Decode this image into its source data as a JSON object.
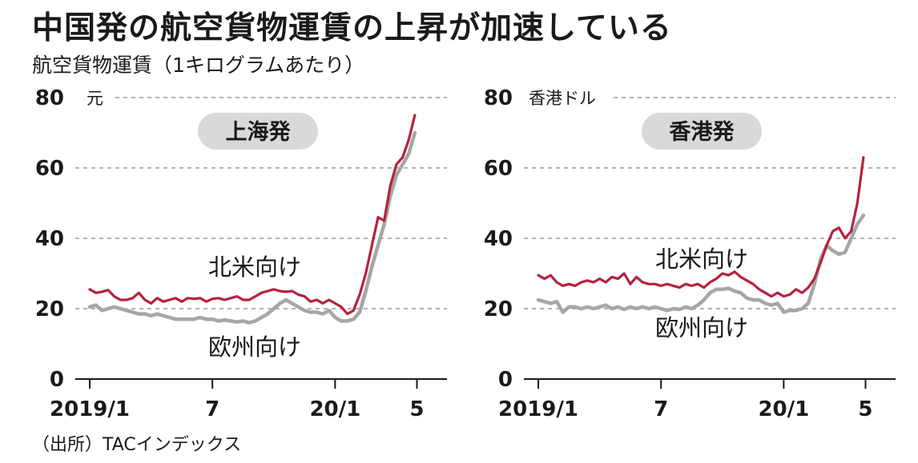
{
  "title": "中国発の航空貨物運賃の上昇が加速している",
  "subtitle": "航空貨物運賃（1キログラムあたり）",
  "source": "（出所）TACインデックス",
  "colors": {
    "north_america": "#b5223f",
    "europe": "#a6a6a6",
    "badge": "#d9d9d9"
  },
  "chart_data": [
    {
      "type": "line",
      "title": "上海発",
      "unit": "元",
      "ylim": [
        0,
        80
      ],
      "yticks": [
        "0",
        "20",
        "40",
        "60",
        "80"
      ],
      "xlim": [
        0,
        17
      ],
      "xticks": [
        {
          "x": 0,
          "label": "2019/1"
        },
        {
          "x": 6,
          "label": "7"
        },
        {
          "x": 12,
          "label": "20/1"
        },
        {
          "x": 16,
          "label": "5"
        }
      ],
      "series": [
        {
          "name": "北米向け",
          "color": "#b5223f",
          "x": [
            0,
            0.3,
            0.6,
            0.9,
            1.2,
            1.5,
            1.8,
            2.1,
            2.4,
            2.7,
            3.0,
            3.3,
            3.6,
            3.9,
            4.2,
            4.5,
            4.8,
            5.1,
            5.4,
            5.7,
            6.0,
            6.3,
            6.6,
            6.9,
            7.2,
            7.5,
            7.8,
            8.1,
            8.4,
            8.7,
            9.0,
            9.3,
            9.6,
            9.9,
            10.2,
            10.5,
            10.8,
            11.1,
            11.4,
            11.7,
            12.0,
            12.3,
            12.6,
            12.9,
            13.2,
            13.5,
            13.8,
            14.1,
            14.4,
            14.7,
            15.0,
            15.3,
            15.6,
            15.9
          ],
          "values": [
            25.5,
            24.5,
            24.8,
            25.3,
            23.5,
            22.5,
            22.5,
            23.0,
            24.5,
            22.5,
            21.5,
            23.0,
            22.0,
            22.5,
            23.0,
            22.0,
            23.0,
            22.8,
            23.0,
            22.0,
            22.8,
            23.0,
            22.5,
            23.0,
            23.5,
            22.5,
            22.5,
            23.5,
            24.5,
            25.0,
            25.5,
            25.0,
            24.8,
            25.0,
            24.0,
            23.5,
            22.0,
            22.5,
            21.5,
            22.5,
            21.5,
            20.5,
            18.5,
            19.5,
            24.0,
            30.0,
            38.0,
            46.0,
            45.0,
            55.0,
            61.0,
            63.0,
            68.0,
            75.0
          ]
        },
        {
          "name": "欧州向け",
          "color": "#a6a6a6",
          "x": [
            0,
            0.3,
            0.6,
            0.9,
            1.2,
            1.5,
            1.8,
            2.1,
            2.4,
            2.7,
            3.0,
            3.3,
            3.6,
            3.9,
            4.2,
            4.5,
            4.8,
            5.1,
            5.4,
            5.7,
            6.0,
            6.3,
            6.6,
            6.9,
            7.2,
            7.5,
            7.8,
            8.1,
            8.4,
            8.7,
            9.0,
            9.3,
            9.6,
            9.9,
            10.2,
            10.5,
            10.8,
            11.1,
            11.4,
            11.7,
            12.0,
            12.3,
            12.6,
            12.9,
            13.2,
            13.5,
            13.8,
            14.1,
            14.4,
            14.7,
            15.0,
            15.3,
            15.6,
            15.9
          ],
          "values": [
            20.5,
            21.0,
            19.5,
            20.0,
            20.5,
            20.0,
            19.5,
            19.0,
            18.5,
            18.5,
            18.0,
            18.5,
            18.0,
            17.5,
            17.0,
            17.0,
            17.0,
            17.0,
            17.5,
            17.0,
            17.0,
            16.5,
            16.8,
            16.5,
            16.2,
            16.5,
            16.0,
            16.5,
            17.5,
            18.5,
            20.0,
            21.5,
            22.5,
            21.5,
            20.5,
            19.5,
            19.0,
            19.0,
            18.5,
            19.5,
            17.5,
            16.5,
            16.5,
            17.0,
            19.0,
            25.0,
            32.0,
            38.0,
            44.0,
            52.0,
            58.0,
            61.0,
            64.0,
            70.0
          ]
        }
      ]
    },
    {
      "type": "line",
      "title": "香港発",
      "unit": "香港ドル",
      "ylim": [
        0,
        80
      ],
      "yticks": [
        "0",
        "20",
        "40",
        "60",
        "80"
      ],
      "xlim": [
        0,
        17
      ],
      "xticks": [
        {
          "x": 0,
          "label": "2019/1"
        },
        {
          "x": 6,
          "label": "7"
        },
        {
          "x": 12,
          "label": "20/1"
        },
        {
          "x": 16,
          "label": "5"
        }
      ],
      "series": [
        {
          "name": "北米向け",
          "color": "#b5223f",
          "x": [
            0,
            0.3,
            0.6,
            0.9,
            1.2,
            1.5,
            1.8,
            2.1,
            2.4,
            2.7,
            3.0,
            3.3,
            3.6,
            3.9,
            4.2,
            4.5,
            4.8,
            5.1,
            5.4,
            5.7,
            6.0,
            6.3,
            6.6,
            6.9,
            7.2,
            7.5,
            7.8,
            8.1,
            8.4,
            8.7,
            9.0,
            9.3,
            9.6,
            9.9,
            10.2,
            10.5,
            10.8,
            11.1,
            11.4,
            11.7,
            12.0,
            12.3,
            12.6,
            12.9,
            13.2,
            13.5,
            13.8,
            14.1,
            14.4,
            14.7,
            15.0,
            15.3,
            15.6,
            15.9
          ],
          "values": [
            29.5,
            28.5,
            29.5,
            27.5,
            26.5,
            27.0,
            26.5,
            27.5,
            28.0,
            27.5,
            28.5,
            27.5,
            29.0,
            28.5,
            30.0,
            27.0,
            29.0,
            27.5,
            27.0,
            27.0,
            26.5,
            27.0,
            26.5,
            26.0,
            27.0,
            26.5,
            27.0,
            26.0,
            27.5,
            28.5,
            30.0,
            29.5,
            30.5,
            29.0,
            28.0,
            27.0,
            25.5,
            24.5,
            23.5,
            24.5,
            23.5,
            24.0,
            25.5,
            24.5,
            26.0,
            28.5,
            33.0,
            38.0,
            42.0,
            43.0,
            40.0,
            42.0,
            50.0,
            63.0
          ]
        },
        {
          "name": "欧州向け",
          "color": "#a6a6a6",
          "x": [
            0,
            0.3,
            0.6,
            0.9,
            1.2,
            1.5,
            1.8,
            2.1,
            2.4,
            2.7,
            3.0,
            3.3,
            3.6,
            3.9,
            4.2,
            4.5,
            4.8,
            5.1,
            5.4,
            5.7,
            6.0,
            6.3,
            6.6,
            6.9,
            7.2,
            7.5,
            7.8,
            8.1,
            8.4,
            8.7,
            9.0,
            9.3,
            9.6,
            9.9,
            10.2,
            10.5,
            10.8,
            11.1,
            11.4,
            11.7,
            12.0,
            12.3,
            12.6,
            12.9,
            13.2,
            13.5,
            13.8,
            14.1,
            14.4,
            14.7,
            15.0,
            15.3,
            15.6,
            15.9
          ],
          "values": [
            22.5,
            22.0,
            21.5,
            22.0,
            19.0,
            20.5,
            20.5,
            20.0,
            20.5,
            20.0,
            20.5,
            21.0,
            20.0,
            20.5,
            19.8,
            20.5,
            20.0,
            20.5,
            20.0,
            20.5,
            20.0,
            19.5,
            20.0,
            19.8,
            20.5,
            20.0,
            21.0,
            22.5,
            24.5,
            25.5,
            25.5,
            25.8,
            25.0,
            24.5,
            23.0,
            22.5,
            22.5,
            21.5,
            21.0,
            21.5,
            19.0,
            19.5,
            19.5,
            20.0,
            21.5,
            27.0,
            34.0,
            38.0,
            36.5,
            35.5,
            36.0,
            40.0,
            44.0,
            46.5
          ]
        }
      ]
    }
  ]
}
